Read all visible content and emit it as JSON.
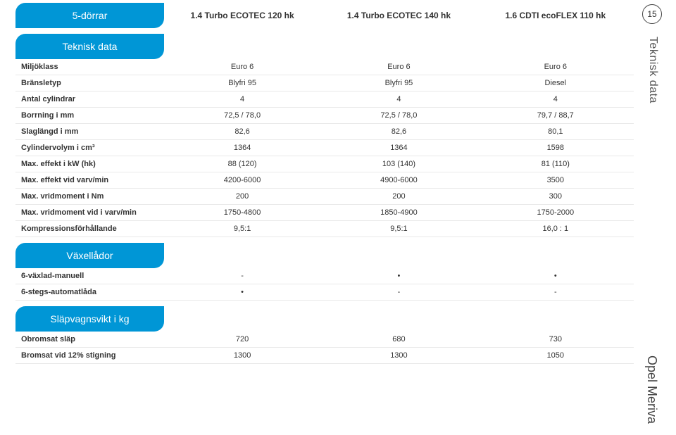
{
  "page_number": "15",
  "side_label_top": "Teknisk data",
  "side_label_bottom": "Opel Meriva",
  "columns": {
    "c1": "1.4 Turbo ECOTEC 120 hk",
    "c2": "1.4 Turbo ECOTEC 140 hk",
    "c3": "1.6 CDTI ecoFLEX 110 hk"
  },
  "sections": [
    {
      "title_prefix": "5-dörrar",
      "title": "Teknisk data",
      "rows": [
        {
          "label": "Miljöklass",
          "v": [
            "Euro 6",
            "Euro 6",
            "Euro 6"
          ]
        },
        {
          "label": "Bränsletyp",
          "v": [
            "Blyfri 95",
            "Blyfri 95",
            "Diesel"
          ]
        },
        {
          "label": "Antal cylindrar",
          "v": [
            "4",
            "4",
            "4"
          ]
        },
        {
          "label": "Borrning i mm",
          "v": [
            "72,5 / 78,0",
            "72,5 / 78,0",
            "79,7 / 88,7"
          ]
        },
        {
          "label": "Slaglängd i mm",
          "v": [
            "82,6",
            "82,6",
            "80,1"
          ]
        },
        {
          "label": "Cylindervolym i cm³",
          "v": [
            "1364",
            "1364",
            "1598"
          ]
        },
        {
          "label": "Max. effekt i kW (hk)",
          "v": [
            "88 (120)",
            "103 (140)",
            "81 (110)"
          ]
        },
        {
          "label": "Max. effekt vid varv/min",
          "v": [
            "4200-6000",
            "4900-6000",
            "3500"
          ]
        },
        {
          "label": "Max. vridmoment i Nm",
          "v": [
            "200",
            "200",
            "300"
          ]
        },
        {
          "label": "Max. vridmoment vid i varv/min",
          "v": [
            "1750-4800",
            "1850-4900",
            "1750-2000"
          ]
        },
        {
          "label": "Kompressionsförhållande",
          "v": [
            "9,5:1",
            "9,5:1",
            "16,0 : 1"
          ]
        }
      ]
    },
    {
      "title": "Växellådor",
      "rows": [
        {
          "label": "6-växlad-manuell",
          "v": [
            "-",
            "•",
            "•"
          ]
        },
        {
          "label": "6-stegs-automatlåda",
          "v": [
            "•",
            "-",
            "-"
          ]
        }
      ]
    },
    {
      "title": "Släpvagnsvikt i kg",
      "rows": [
        {
          "label": "Obromsat släp",
          "v": [
            "720",
            "680",
            "730"
          ]
        },
        {
          "label": "Bromsat vid 12% stigning",
          "v": [
            "1300",
            "1300",
            "1050"
          ]
        }
      ]
    }
  ]
}
